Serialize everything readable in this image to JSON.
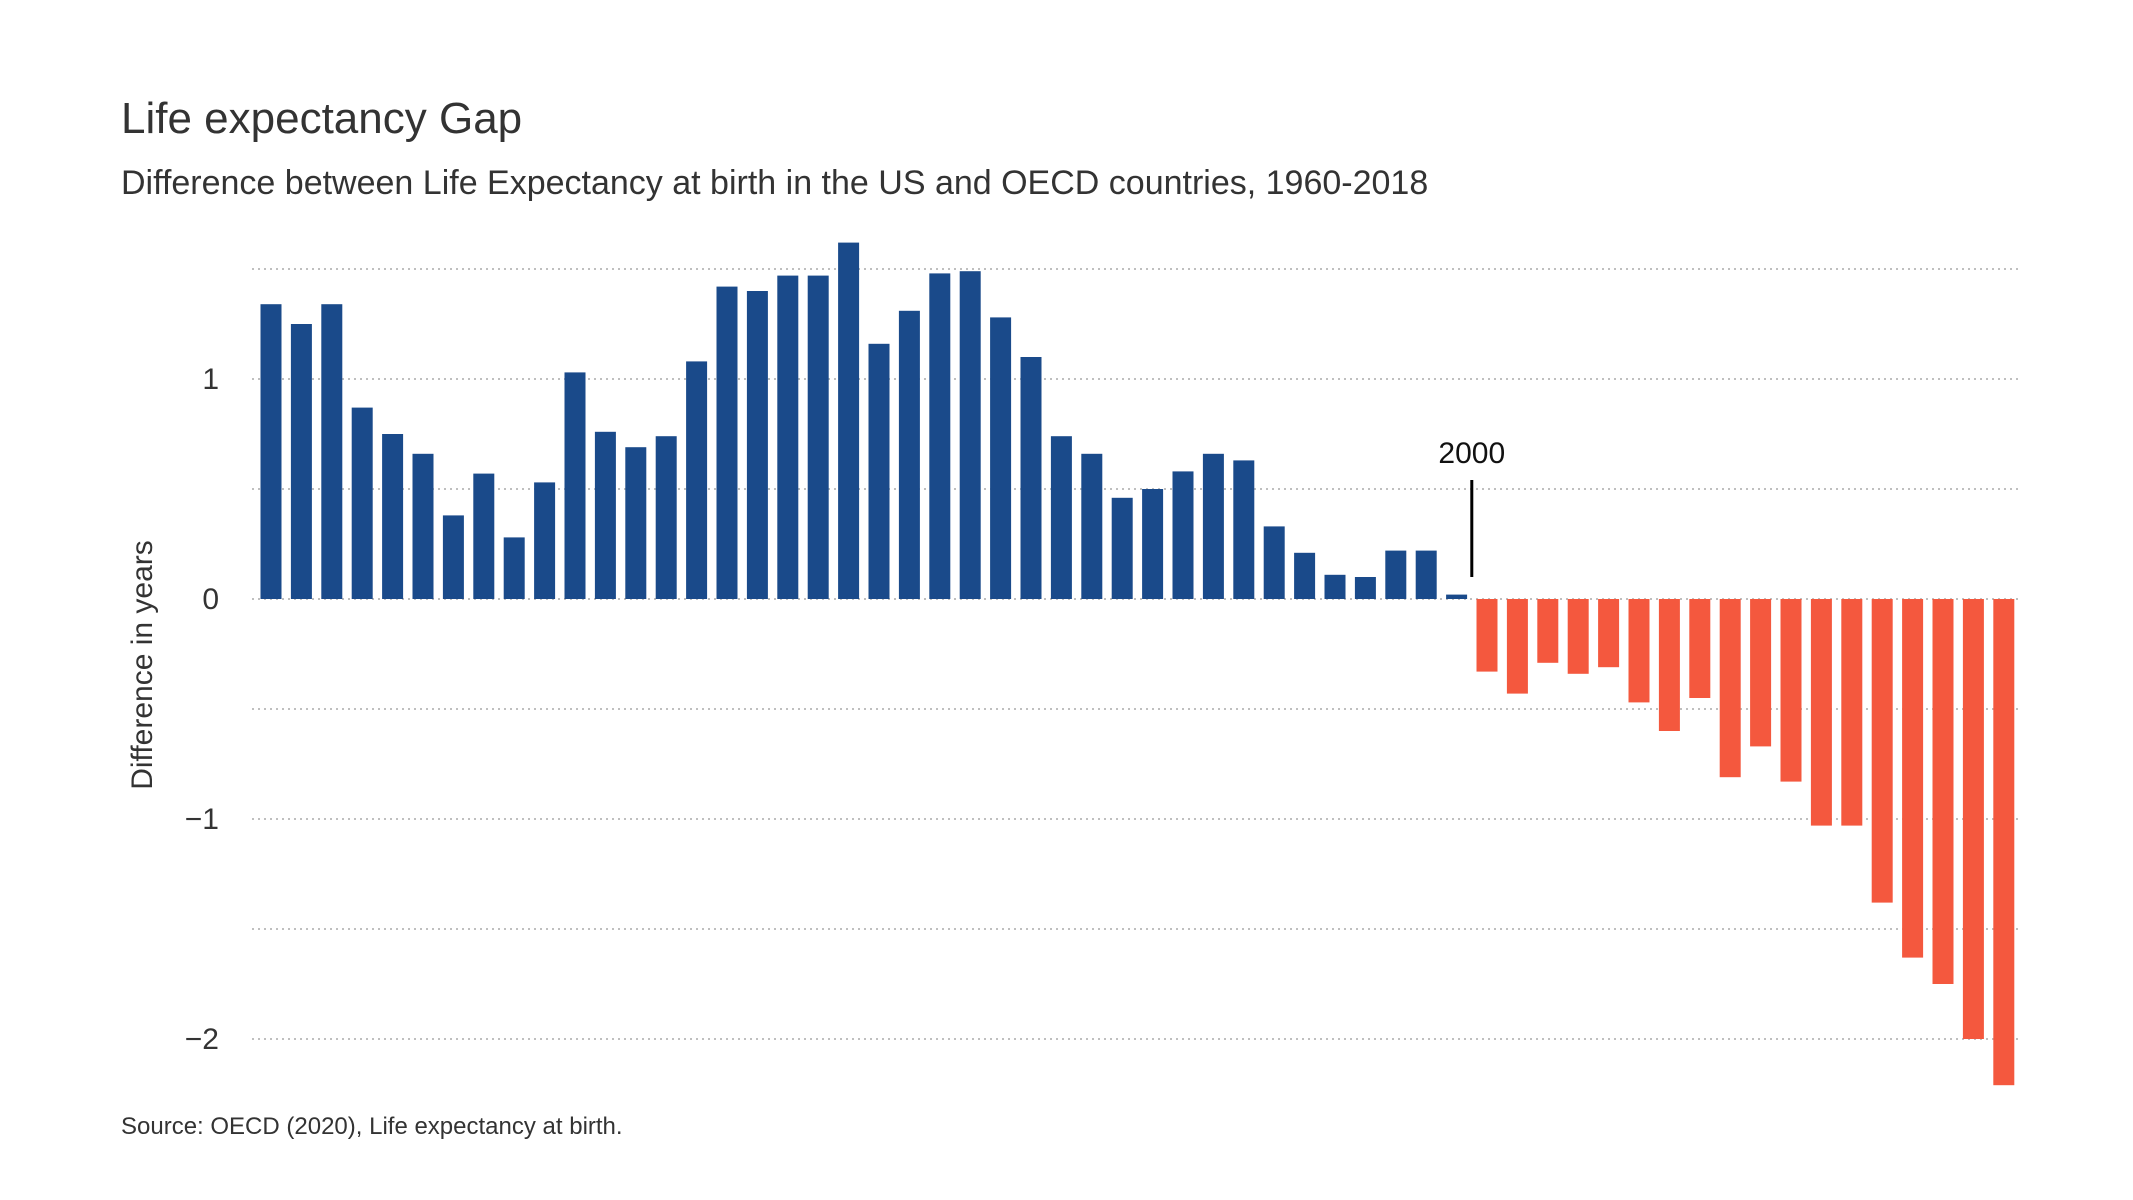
{
  "chart_data": {
    "type": "bar",
    "title": "Life expectancy Gap",
    "subtitle": "Difference between Life Expectancy at birth in the US and OECD countries, 1960-2018",
    "ylabel": "Difference in years",
    "xlabel": "",
    "source": "Source: OECD (2020), Life expectancy at birth.",
    "ylim": [
      -2.25,
      1.65
    ],
    "yticks": [
      {
        "value": 1,
        "label": "1"
      },
      {
        "value": 0,
        "label": "0"
      },
      {
        "value": -1,
        "label": "−1"
      },
      {
        "value": -2,
        "label": "−2"
      }
    ],
    "gridlines": [
      1.5,
      1,
      0.5,
      0,
      -0.5,
      -1,
      -1.5,
      -2
    ],
    "grid": true,
    "annotation": {
      "label": "2000"
    },
    "colors": {
      "positive": "#1a4a8a",
      "negative": "#f4583e"
    },
    "values": [
      1.34,
      1.25,
      1.34,
      0.87,
      0.75,
      0.66,
      0.38,
      0.57,
      0.28,
      0.53,
      1.03,
      0.76,
      0.69,
      0.74,
      1.08,
      1.42,
      1.4,
      1.47,
      1.47,
      1.62,
      1.16,
      1.31,
      1.48,
      1.49,
      1.28,
      1.1,
      0.74,
      0.66,
      0.46,
      0.5,
      0.58,
      0.66,
      0.63,
      0.33,
      0.21,
      0.11,
      0.1,
      0.22,
      0.22,
      0.02,
      -0.33,
      -0.43,
      -0.29,
      -0.34,
      -0.31,
      -0.47,
      -0.6,
      -0.45,
      -0.81,
      -0.67,
      -0.83,
      -1.03,
      -1.03,
      -1.38,
      -1.63,
      -1.75,
      -2.0,
      -2.21
    ]
  }
}
